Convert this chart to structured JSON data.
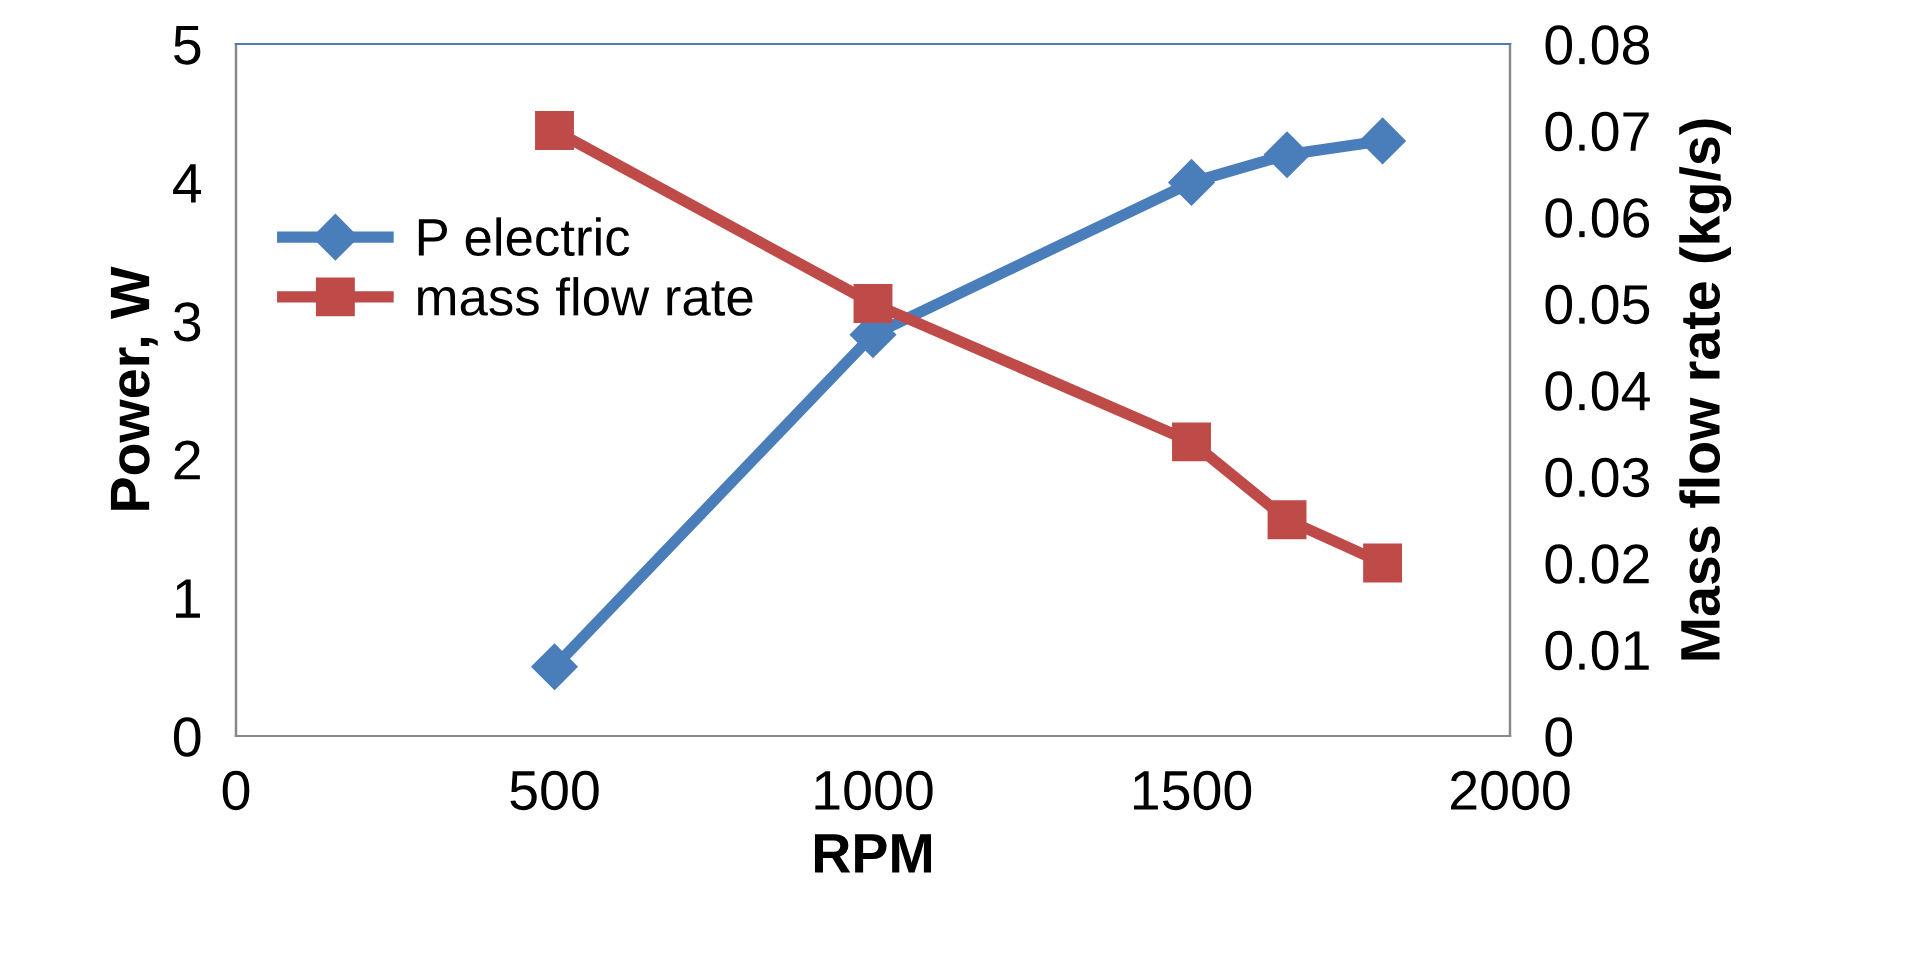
{
  "chart_data": {
    "type": "line",
    "xlabel": "RPM",
    "ylabel": "Power, W",
    "y2label": "Mass flow rate (kg/s)",
    "x": [
      500,
      1000,
      1500,
      1650,
      1800
    ],
    "series": [
      {
        "name": "P electric",
        "color": "#4a7ebb",
        "marker": "diamond",
        "values": [
          0.5,
          2.9,
          4.0,
          4.2,
          4.3
        ]
      },
      {
        "name": "mass flow rate",
        "color": "#be4b48",
        "marker": "square",
        "axis": "y2",
        "values": [
          0.07,
          0.05,
          0.034,
          0.025,
          0.02
        ]
      }
    ],
    "xlim": [
      0,
      2000
    ],
    "xticks": [
      0,
      500,
      1000,
      1500,
      2000
    ],
    "ylim": [
      0,
      5
    ],
    "yticks": [
      0,
      1,
      2,
      3,
      4,
      5
    ],
    "y2lim": [
      0,
      0.08
    ],
    "y2ticks": [
      0,
      0.01,
      0.02,
      0.03,
      0.04,
      0.05,
      0.06,
      0.07,
      0.08
    ],
    "legend": "top left",
    "grid": false,
    "line_style": "solid"
  }
}
